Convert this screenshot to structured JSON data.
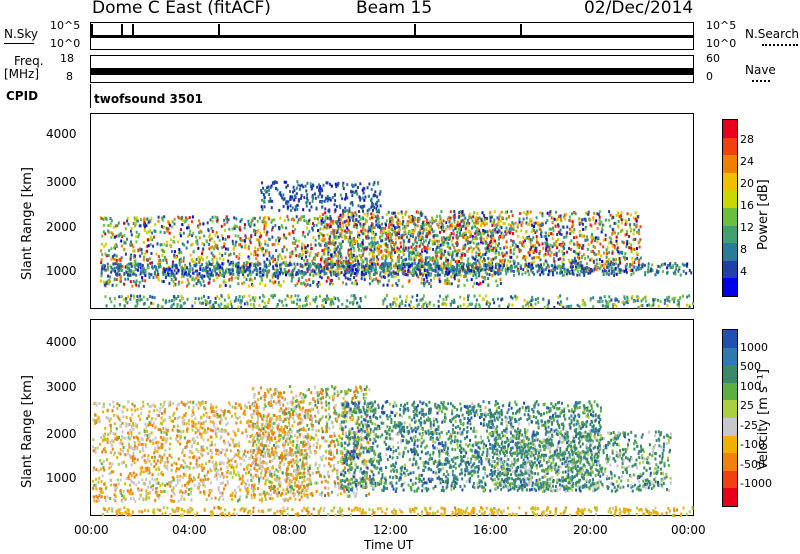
{
  "header": {
    "station": "Dome C East (fitACF)",
    "beam": "Beam 15",
    "date": "02/Dec/2014"
  },
  "status_panels": {
    "nsky_label": "N.Sky",
    "nsky_ticks_left": [
      "10^5",
      "10^0"
    ],
    "nsearch_label": "N.Search",
    "nsearch_ticks_right": [
      "10^5",
      "10^0"
    ],
    "freq_label": "Freq.",
    "freq_unit": "[MHz]",
    "freq_ticks": [
      "18",
      "8"
    ],
    "nave_label": "Nave",
    "nave_ticks": [
      "60",
      "0"
    ],
    "cpid_label": "CPID",
    "cpid_value": "twofsound 3501"
  },
  "chart_data": [
    {
      "type": "heatmap",
      "quantity": "Power",
      "ylabel": "Slant Range [km]",
      "ylim": [
        200,
        4500
      ],
      "yticks": [
        "4000",
        "3000",
        "2000",
        "1000"
      ],
      "colorbar_label": "Power [dB]",
      "colorbar_ticks": [
        "28",
        "24",
        "20",
        "16",
        "12",
        "8",
        "4"
      ],
      "colorbar_colors": [
        "#e8001a",
        "#f04010",
        "#f08000",
        "#f0c000",
        "#c8d800",
        "#6cc040",
        "#40a070",
        "#2a7a9a",
        "#2040a8",
        "#0000e8"
      ]
    },
    {
      "type": "heatmap",
      "quantity": "Velocity",
      "ylabel": "Slant Range [km]",
      "ylim": [
        200,
        4500
      ],
      "yticks": [
        "4000",
        "3000",
        "2000",
        "1000"
      ],
      "colorbar_label": "Velocity [m s⁻¹]",
      "colorbar_ticks": [
        "1000",
        "500",
        "100",
        "25",
        "-25",
        "-100",
        "-500",
        "-1000"
      ],
      "colorbar_colors": [
        "#2050b0",
        "#2e7ab0",
        "#3a8a6a",
        "#5ab040",
        "#a8d040",
        "#c8c8c8",
        "#f0b000",
        "#f08010",
        "#f04010",
        "#e8001a"
      ]
    }
  ],
  "x_axis": {
    "label": "Time UT",
    "ticks": [
      "00:00",
      "04:00",
      "08:00",
      "12:00",
      "16:00",
      "20:00",
      "00:00"
    ]
  }
}
